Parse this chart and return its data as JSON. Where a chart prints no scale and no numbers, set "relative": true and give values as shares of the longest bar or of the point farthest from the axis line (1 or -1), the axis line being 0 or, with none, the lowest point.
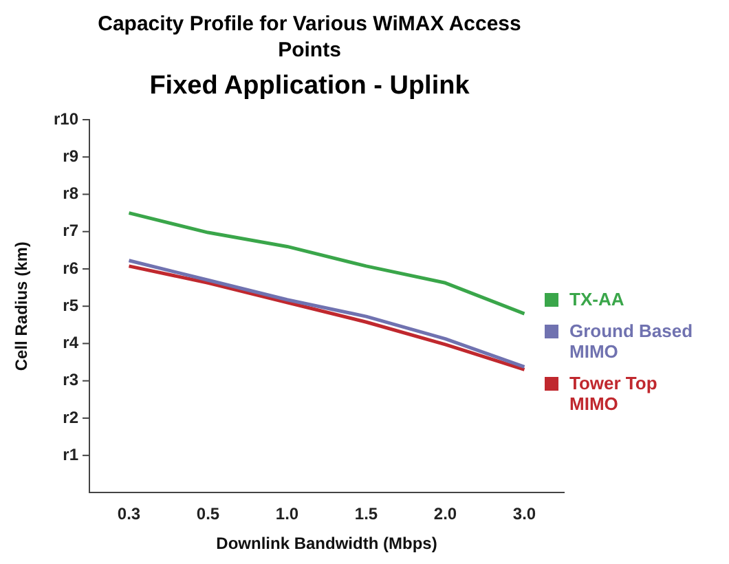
{
  "chart_data": {
    "type": "line",
    "title": "Capacity Profile for Various WiMAX Access Points",
    "subtitle": "Fixed Application - Uplink",
    "xlabel": "Downlink Bandwidth (Mbps)",
    "ylabel": "Cell Radius (km)",
    "categories": [
      "0.3",
      "0.5",
      "1.0",
      "1.5",
      "2.0",
      "3.0"
    ],
    "relative": true,
    "series": [
      {
        "name": "TX-AA",
        "color": "#3aa64a",
        "values": [
          1,
          0.93,
          0.88,
          0.81,
          0.75,
          0.64
        ]
      },
      {
        "name": "Ground Based MIMO",
        "color": "#7072b0",
        "values": [
          0.83,
          0.76,
          0.69,
          0.63,
          0.55,
          0.45
        ]
      },
      {
        "name": "Tower Top MIMO",
        "color": "#c0282e",
        "values": [
          0.81,
          0.75,
          0.68,
          0.61,
          0.53,
          0.44
        ]
      }
    ],
    "annotations": [
      "r1",
      "r2",
      "r3",
      "r4",
      "r5",
      "r6",
      "r7",
      "r8",
      "r9",
      "r10"
    ],
    "grid": false,
    "legend": "right",
    "marker": "none",
    "line_style": "solid"
  }
}
